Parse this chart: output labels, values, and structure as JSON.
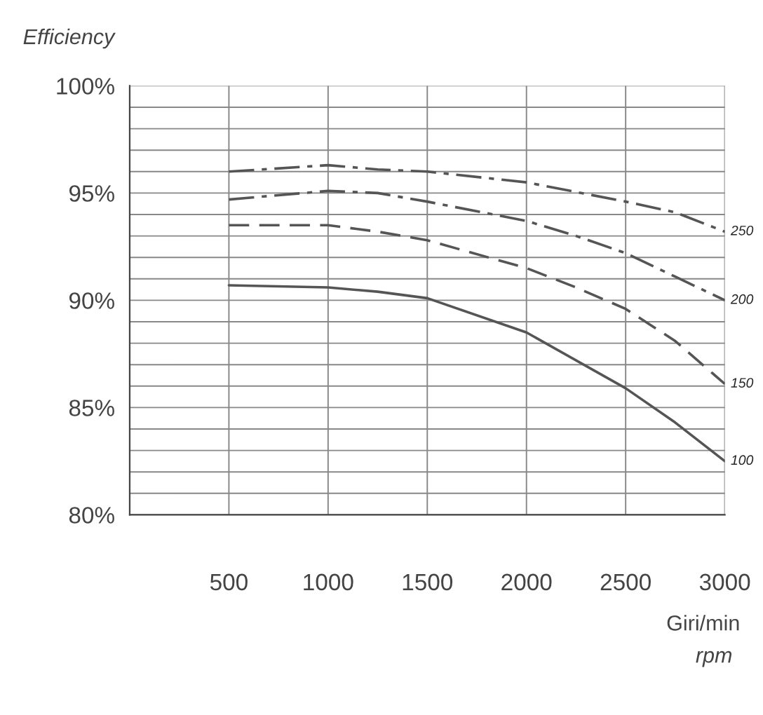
{
  "chart_data": {
    "type": "line",
    "ylabel": "Efficiency",
    "xlabel": "Giri/min",
    "annotations": [
      "rpm"
    ],
    "xlim": [
      0,
      3000
    ],
    "xticks": [
      500,
      1000,
      1500,
      2000,
      2500,
      3000
    ],
    "ylim": [
      80,
      100
    ],
    "yticks": [
      {
        "value": 80,
        "label": "80%"
      },
      {
        "value": 81,
        "label": null
      },
      {
        "value": 82,
        "label": null
      },
      {
        "value": 83,
        "label": null
      },
      {
        "value": 84,
        "label": null
      },
      {
        "value": 85,
        "label": "85%"
      },
      {
        "value": 86,
        "label": null
      },
      {
        "value": 87,
        "label": null
      },
      {
        "value": 88,
        "label": null
      },
      {
        "value": 89,
        "label": null
      },
      {
        "value": 90,
        "label": "90%"
      },
      {
        "value": 91,
        "label": null
      },
      {
        "value": 92,
        "label": null
      },
      {
        "value": 93,
        "label": null
      },
      {
        "value": 94,
        "label": null
      },
      {
        "value": 95,
        "label": "95%"
      },
      {
        "value": 96,
        "label": null
      },
      {
        "value": 97,
        "label": null
      },
      {
        "value": 98,
        "label": null
      },
      {
        "value": 99,
        "label": null
      },
      {
        "value": 100,
        "label": "100%"
      }
    ],
    "grid": true,
    "marker": "none",
    "series": [
      {
        "name": "250",
        "color": "#555555",
        "line_style": "dashdot",
        "x": [
          500,
          1000,
          1250,
          1500,
          2000,
          2500,
          2750,
          3000
        ],
        "values": [
          96.0,
          96.3,
          96.1,
          96.0,
          95.5,
          94.6,
          94.1,
          93.2
        ]
      },
      {
        "name": "200",
        "color": "#555555",
        "line_style": "dashdot",
        "x": [
          500,
          1000,
          1250,
          1500,
          2000,
          2250,
          2500,
          2750,
          3000
        ],
        "values": [
          94.7,
          95.1,
          95.0,
          94.6,
          93.7,
          93.0,
          92.2,
          91.1,
          90.0
        ]
      },
      {
        "name": "150",
        "color": "#555555",
        "line_style": "dashed",
        "x": [
          500,
          1000,
          1250,
          1500,
          2000,
          2250,
          2500,
          2750,
          3000
        ],
        "values": [
          93.5,
          93.5,
          93.2,
          92.8,
          91.5,
          90.6,
          89.6,
          88.1,
          86.1
        ]
      },
      {
        "name": "100",
        "color": "#555555",
        "line_style": "solid",
        "x": [
          500,
          1000,
          1250,
          1500,
          2000,
          2500,
          2750,
          3000
        ],
        "values": [
          90.7,
          90.6,
          90.4,
          90.1,
          88.5,
          85.9,
          84.3,
          82.5
        ]
      }
    ]
  }
}
